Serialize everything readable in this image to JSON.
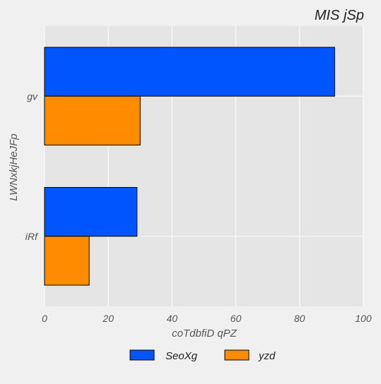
{
  "chart_data": {
    "type": "bar",
    "orientation": "horizontal",
    "title": "MIS jSp",
    "xlabel": "coTdbfiD qPZ",
    "ylabel": "LWNxkjHeJFp",
    "categories": [
      "gv",
      "iRf"
    ],
    "series": [
      {
        "name": "SeoXg",
        "values": [
          91,
          29
        ],
        "color": "#0055ff"
      },
      {
        "name": "yzd",
        "values": [
          30,
          14
        ],
        "color": "#ff8c00"
      }
    ],
    "xlim": [
      0,
      100
    ],
    "xticks": [
      0,
      20,
      40,
      60,
      80,
      100
    ],
    "grid": true,
    "legend_position": "bottom"
  }
}
